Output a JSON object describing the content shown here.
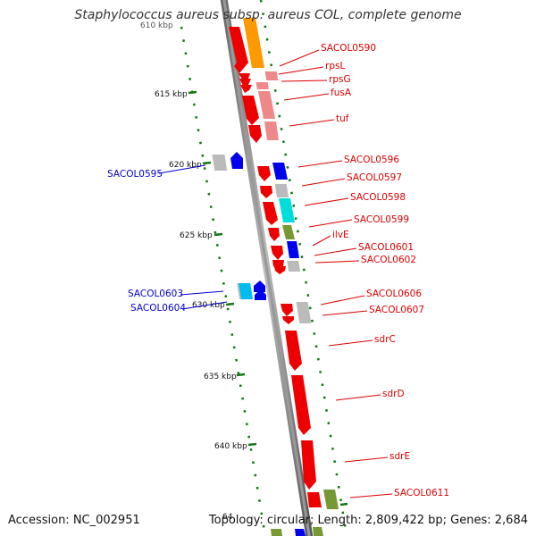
{
  "title": "Staphylococcus aureus subsp. aureus COL, complete genome",
  "accession": "Accession: NC_002951",
  "summary": "Topology: circular; Length: 2,809,422 bp; Genes: 2,684",
  "scale": {
    "unit": "kbp",
    "tick_labels": [
      "610 kbp",
      "615 kbp",
      "620 kbp",
      "625 kbp",
      "630 kbp",
      "635 kbp",
      "640 kbp",
      "64"
    ]
  },
  "colors": {
    "backbone": "#8c8c8c",
    "gene_red": "#ee0000",
    "gene_orange": "#ff9900",
    "gene_pink": "#ef8888",
    "gene_blue": "#0000ee",
    "gene_cyan": "#00dddd",
    "gene_grey": "#bbbbbb",
    "gene_olive": "#779933",
    "label_forward": "#dd0000",
    "label_reverse": "#0000cc",
    "tick_green": "#117711"
  },
  "forward_labels": [
    "SACOL0590",
    "rpsL",
    "rpsG",
    "fusA",
    "tuf",
    "SACOL0596",
    "SACOL0597",
    "SACOL0598",
    "SACOL0599",
    "ilvE",
    "SACOL0601",
    "SACOL0602",
    "SACOL0606",
    "SACOL0607",
    "sdrC",
    "sdrD",
    "sdrE",
    "SACOL0611"
  ],
  "reverse_labels": [
    "SACOL0595",
    "SACOL0603",
    "SACOL0604"
  ]
}
